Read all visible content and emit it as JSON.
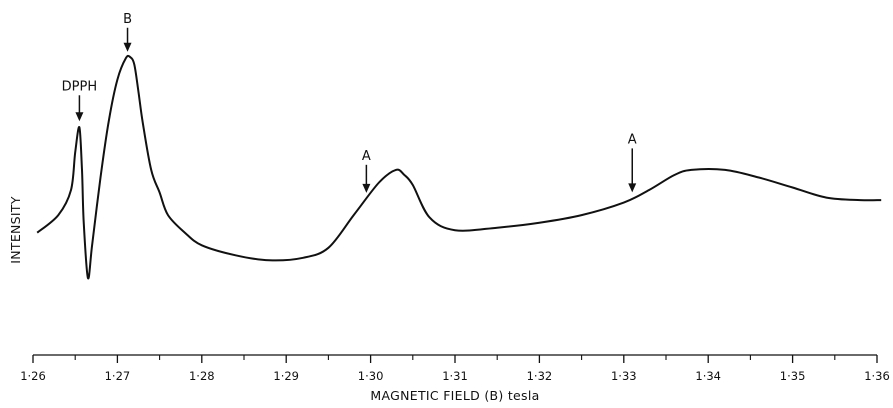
{
  "chart_data": {
    "type": "line",
    "title": "",
    "xlabel": "MAGNETIC FIELD (B) tesla",
    "ylabel": "INTENSITY",
    "xlim": [
      1.26,
      1.36
    ],
    "ylim": [
      0,
      1
    ],
    "grid": false,
    "x_ticks": [
      1.26,
      1.27,
      1.28,
      1.29,
      1.3,
      1.31,
      1.32,
      1.33,
      1.34,
      1.35,
      1.36
    ],
    "x_tick_labels": [
      "1·26",
      "1·27",
      "1·28",
      "1·29",
      "1·30",
      "1·31",
      "1·32",
      "1·33",
      "1·34",
      "1·35",
      "1·36"
    ],
    "y_tick_labels_shown": false,
    "series": [
      {
        "x": [
          1.2605,
          1.263,
          1.2645,
          1.265,
          1.2655,
          1.2658,
          1.266,
          1.2665,
          1.267,
          1.268,
          1.269,
          1.27,
          1.271,
          1.2715,
          1.272,
          1.2725,
          1.273,
          1.274,
          1.275,
          1.276,
          1.278,
          1.28,
          1.284,
          1.288,
          1.292,
          1.295,
          1.298,
          1.301,
          1.303,
          1.304,
          1.305,
          1.307,
          1.31,
          1.315,
          1.32,
          1.325,
          1.33,
          1.333,
          1.336,
          1.338,
          1.342,
          1.346,
          1.35,
          1.354,
          1.358,
          1.3605
        ],
        "y": [
          0.3,
          0.37,
          0.47,
          0.62,
          0.72,
          0.55,
          0.35,
          0.12,
          0.25,
          0.52,
          0.75,
          0.91,
          0.995,
          1.0,
          0.97,
          0.86,
          0.74,
          0.55,
          0.46,
          0.37,
          0.3,
          0.25,
          0.21,
          0.19,
          0.2,
          0.24,
          0.37,
          0.5,
          0.55,
          0.53,
          0.49,
          0.36,
          0.31,
          0.32,
          0.34,
          0.37,
          0.42,
          0.47,
          0.53,
          0.55,
          0.55,
          0.52,
          0.48,
          0.44,
          0.43,
          0.43
        ]
      }
    ],
    "annotations": [
      {
        "label": "DPPH",
        "x": 1.2655,
        "arrow": "down"
      },
      {
        "label": "B",
        "x": 1.2712,
        "arrow": "down"
      },
      {
        "label": "A",
        "x": 1.2995,
        "arrow": "down"
      },
      {
        "label": "A",
        "x": 1.331,
        "arrow": "down"
      }
    ]
  }
}
